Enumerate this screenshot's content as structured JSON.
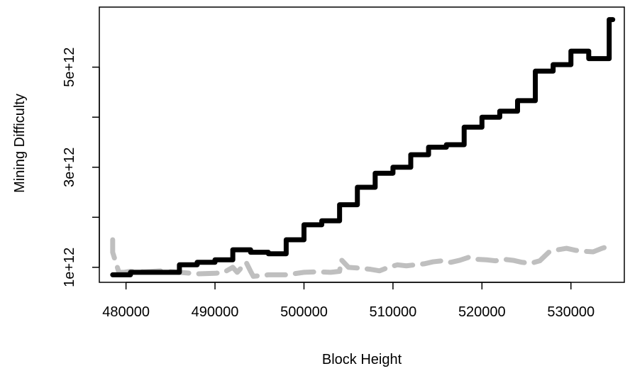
{
  "chart_data": {
    "type": "line",
    "title": "",
    "xlabel": "Block Height",
    "ylabel": "Mining Difficulty",
    "xlim": [
      477000,
      536000
    ],
    "ylim": [
      700000000000,
      6200000000000
    ],
    "x_ticks": [
      480000,
      490000,
      500000,
      510000,
      520000,
      530000
    ],
    "x_tick_labels": [
      "480000",
      "490000",
      "500000",
      "510000",
      "520000",
      "530000"
    ],
    "y_ticks": [
      1000000000000,
      2000000000000,
      3000000000000,
      4000000000000,
      5000000000000
    ],
    "y_tick_labels": [
      "1e+12",
      "",
      "3e+12",
      "",
      "5e+12"
    ],
    "grid": false,
    "legend": "none",
    "series": [
      {
        "color": "#000000",
        "style": "solid-step",
        "x": [
          478500,
          480500,
          484000,
          486000,
          488000,
          490000,
          492000,
          494000,
          496000,
          498000,
          500000,
          502000,
          504000,
          506000,
          508000,
          510000,
          512000,
          514000,
          516000,
          518000,
          520000,
          522000,
          524000,
          526000,
          528000,
          530000,
          532000,
          534300,
          534700
        ],
        "y": [
          850000000000,
          900000000000,
          900000000000,
          1050000000000,
          1100000000000,
          1150000000000,
          1350000000000,
          1300000000000,
          1270000000000,
          1550000000000,
          1850000000000,
          1930000000000,
          2250000000000,
          2600000000000,
          2880000000000,
          3000000000000,
          3250000000000,
          3400000000000,
          3450000000000,
          3800000000000,
          4000000000000,
          4120000000000,
          4330000000000,
          4920000000000,
          5050000000000,
          5320000000000,
          5170000000000,
          5950000000000,
          5950000000000
        ]
      },
      {
        "color": "#bfbfbf",
        "style": "dashed-thick",
        "x": [
          478500,
          478500,
          479200,
          479800,
          480500,
          482000,
          484000,
          486000,
          488000,
          490000,
          491000,
          492000,
          492500,
          493500,
          494000,
          494300,
          496000,
          498000,
          500000,
          501500,
          503000,
          504000,
          504200,
          505000,
          506500,
          507500,
          508500,
          509500,
          510500,
          511500,
          512500,
          513500,
          514500,
          515500,
          516500,
          517500,
          518500,
          519500,
          520500,
          521500,
          522500,
          523500,
          524500,
          525500,
          526500,
          527500,
          528500,
          529500,
          530500,
          531500,
          532500,
          533500,
          534200,
          534700
        ],
        "y": [
          1550000000000,
          1300000000000,
          900000000000,
          900000000000,
          920000000000,
          910000000000,
          930000000000,
          900000000000,
          870000000000,
          880000000000,
          900000000000,
          1000000000000,
          900000000000,
          1100000000000,
          920000000000,
          820000000000,
          850000000000,
          850000000000,
          900000000000,
          910000000000,
          900000000000,
          920000000000,
          1150000000000,
          1000000000000,
          980000000000,
          960000000000,
          930000000000,
          1000000000000,
          1050000000000,
          1030000000000,
          1050000000000,
          1070000000000,
          1110000000000,
          1130000000000,
          1100000000000,
          1140000000000,
          1200000000000,
          1160000000000,
          1150000000000,
          1130000000000,
          1160000000000,
          1140000000000,
          1100000000000,
          1080000000000,
          1130000000000,
          1300000000000,
          1350000000000,
          1380000000000,
          1340000000000,
          1320000000000,
          1310000000000,
          1380000000000,
          1420000000000,
          1380000000000
        ]
      }
    ]
  }
}
